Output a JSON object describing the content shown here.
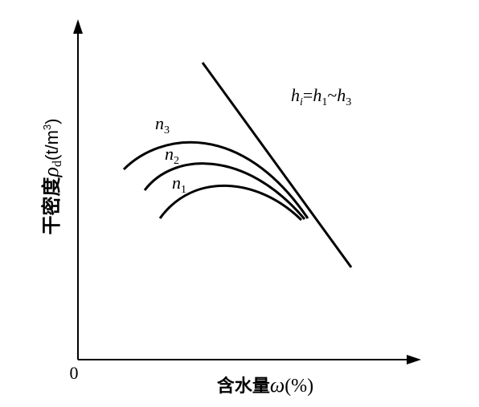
{
  "figure": {
    "origin_label": "0",
    "x_axis_label": {
      "main": "含水量",
      "symbol": "ω",
      "unit": "(%)"
    },
    "y_axis_label": {
      "main": "干密度",
      "symbol": "ρ",
      "symbol_sub": "d",
      "unit_open": "(t/m",
      "unit_sup": "3",
      "unit_close": ")"
    },
    "line_label": {
      "h": "h",
      "i": "i",
      "eq": "=",
      "h1": "h",
      "sub1": "1",
      "tilde": "~",
      "h3": "h",
      "sub3": "3"
    },
    "curves": [
      {
        "name": "n",
        "sub": "3"
      },
      {
        "name": "n",
        "sub": "2"
      },
      {
        "name": "n",
        "sub": "1"
      }
    ]
  }
}
